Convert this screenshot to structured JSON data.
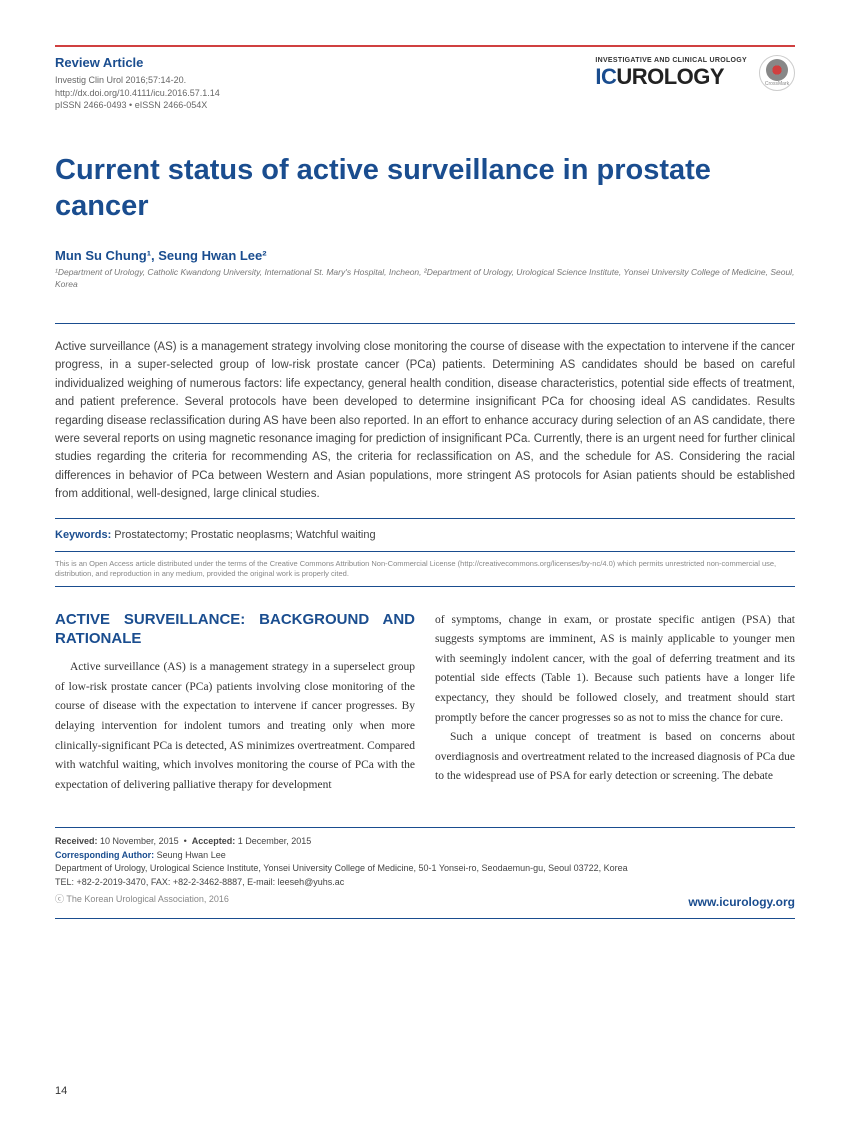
{
  "header": {
    "article_type": "Review Article",
    "citation": "Investig Clin Urol 2016;57:14-20.",
    "doi": "http://dx.doi.org/10.4111/icu.2016.57.1.14",
    "issn": "pISSN 2466-0493 • eISSN 2466-054X",
    "journal_tag": "INVESTIGATIVE AND CLINICAL UROLOGY",
    "logo_ic": "IC",
    "logo_urology": "UROLOGY",
    "crossmark": "CrossMark"
  },
  "title": "Current status of active surveillance in prostate cancer",
  "authors": "Mun Su Chung¹, Seung Hwan Lee²",
  "affiliations": "¹Department of Urology, Catholic Kwandong University, International St. Mary's Hospital, Incheon, ²Department of Urology, Urological Science Institute, Yonsei University College of Medicine, Seoul, Korea",
  "abstract": "Active surveillance (AS) is a management strategy involving close monitoring the course of disease with the expectation to intervene if the cancer progress, in a super-selected group of low-risk prostate cancer (PCa) patients. Determining AS candidates should be based on careful individualized weighing of numerous factors: life expectancy, general health condition, disease characteristics, potential side effects of treatment, and patient preference. Several protocols have been developed to determine insignificant PCa for choosing ideal AS candidates. Results regarding disease reclassification during AS have been also reported. In an effort to enhance accuracy during selection of an AS candidate, there were several reports on using magnetic resonance imaging for prediction of insignificant PCa. Currently, there is an urgent need for further clinical studies regarding the criteria for recommending AS, the criteria for reclassification on AS, and the schedule for AS. Considering the racial differences in behavior of PCa between Western and Asian populations, more stringent AS protocols for Asian patients should be established from additional, well-designed, large clinical studies.",
  "keywords_label": "Keywords:",
  "keywords_text": " Prostatectomy; Prostatic neoplasms; Watchful waiting",
  "license": "This is an Open Access article distributed under the terms of the Creative Commons Attribution Non-Commercial License (http://creativecommons.org/licenses/by-nc/4.0) which permits unrestricted non-commercial use, distribution, and reproduction in any medium, provided the original work is properly cited.",
  "section_heading": "ACTIVE SURVEILLANCE: BACKGROUND AND RATIONALE",
  "body": {
    "col1": "Active surveillance (AS) is a management strategy in a superselect group of low-risk prostate cancer (PCa) patients involving close monitoring of the course of disease with the expectation to intervene if cancer progresses. By delaying intervention for indolent tumors and treating only when more clinically-significant PCa is detected, AS minimizes overtreatment. Compared with watchful waiting, which involves monitoring the course of PCa with the expectation of delivering palliative therapy for development",
    "col2_p1": "of symptoms, change in exam, or prostate specific antigen (PSA) that suggests symptoms are imminent, AS is mainly applicable to younger men with seemingly indolent cancer, with the goal of deferring treatment and its potential side effects (Table 1). Because such patients have a longer life expectancy, they should be followed closely, and treatment should start promptly before the cancer progresses so as not to miss the chance for cure.",
    "col2_p2": "Such a unique concept of treatment is based on concerns about overdiagnosis and overtreatment related to the increased diagnosis of PCa due to the widespread use of PSA for early detection or screening. The debate"
  },
  "footer": {
    "received_label": "Received:",
    "received": " 10 November, 2015",
    "accepted_label": "Accepted:",
    "accepted": " 1 December, 2015",
    "corr_label": "Corresponding Author:",
    "corr_name": " Seung Hwan Lee",
    "corr_addr": "Department of Urology, Urological Science Institute, Yonsei University College of Medicine, 50-1 Yonsei-ro, Seodaemun-gu, Seoul 03722, Korea",
    "corr_tel": "TEL: +82-2-2019-3470, FAX: +82-2-3462-8887, E-mail: leeseh@yuhs.ac",
    "copyright": "ⓒ The Korean Urological Association, 2016",
    "url": "www.icurology.org"
  },
  "page_number": "14"
}
